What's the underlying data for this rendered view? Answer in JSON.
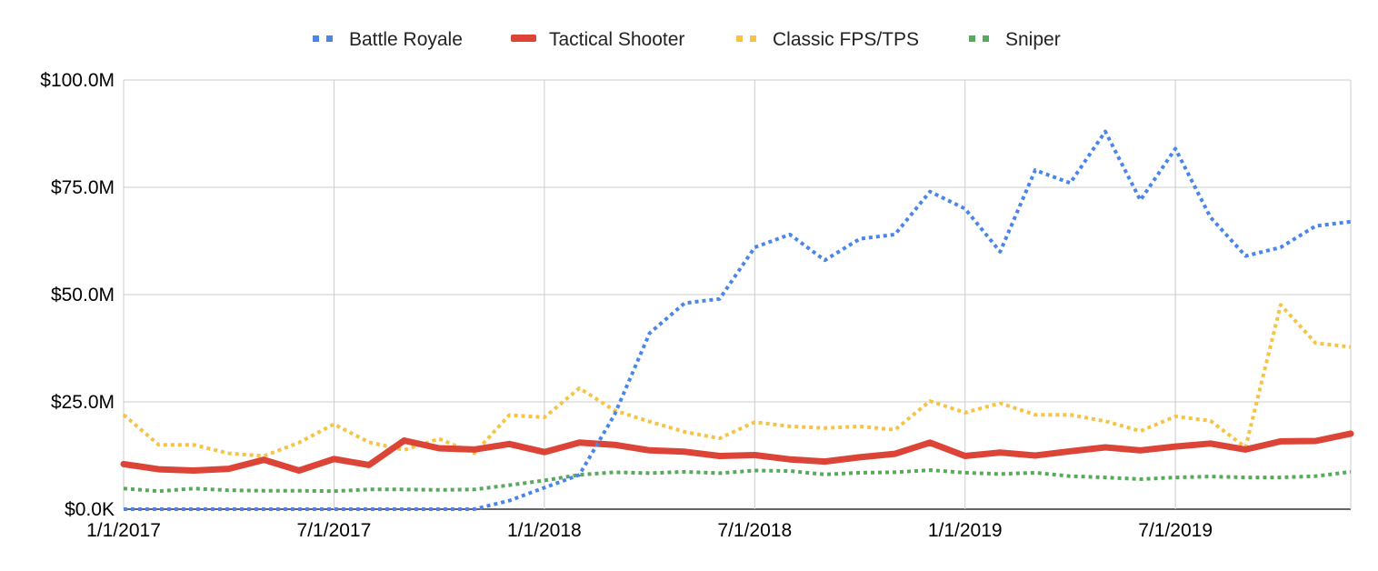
{
  "chart_data": {
    "type": "line",
    "title": "",
    "xlabel": "",
    "ylabel": "",
    "x": [
      "1/1/2017",
      "2/1/2017",
      "3/1/2017",
      "4/1/2017",
      "5/1/2017",
      "6/1/2017",
      "7/1/2017",
      "8/1/2017",
      "9/1/2017",
      "10/1/2017",
      "11/1/2017",
      "12/1/2017",
      "1/1/2018",
      "2/1/2018",
      "3/1/2018",
      "4/1/2018",
      "5/1/2018",
      "6/1/2018",
      "7/1/2018",
      "8/1/2018",
      "9/1/2018",
      "10/1/2018",
      "11/1/2018",
      "12/1/2018",
      "1/1/2019",
      "2/1/2019",
      "3/1/2019",
      "4/1/2019",
      "5/1/2019",
      "6/1/2019",
      "7/1/2019",
      "8/1/2019",
      "9/1/2019",
      "10/1/2019",
      "11/1/2019",
      "12/1/2019"
    ],
    "y_unit": "millions of dollars",
    "ylim": [
      0,
      100
    ],
    "y_ticks": [
      {
        "value": 0,
        "label": "$0.0K"
      },
      {
        "value": 25,
        "label": "$25.0M"
      },
      {
        "value": 50,
        "label": "$50.0M"
      },
      {
        "value": 75,
        "label": "$75.0M"
      },
      {
        "value": 100,
        "label": "$100.0M"
      }
    ],
    "x_ticks": [
      {
        "x": "1/1/2017",
        "label": "1/1/2017"
      },
      {
        "x": "7/1/2017",
        "label": "7/1/2017"
      },
      {
        "x": "1/1/2018",
        "label": "1/1/2018"
      },
      {
        "x": "7/1/2018",
        "label": "7/1/2018"
      },
      {
        "x": "1/1/2019",
        "label": "1/1/2019"
      },
      {
        "x": "7/1/2019",
        "label": "7/1/2019"
      }
    ],
    "grid": true,
    "legend": "top-center",
    "series": [
      {
        "name": "Battle Royale",
        "color": "#4a86e8",
        "style": "dotted",
        "values": [
          0,
          0,
          0,
          0,
          0,
          0,
          0,
          0,
          0,
          0,
          0,
          2,
          5,
          8,
          22,
          41,
          48,
          49,
          61,
          64,
          58,
          63,
          64,
          74,
          70,
          60,
          79,
          76,
          88,
          72,
          84,
          68,
          59,
          61,
          66,
          67
        ]
      },
      {
        "name": "Tactical Shooter",
        "color": "#db4437",
        "style": "solid",
        "values": [
          10.5,
          9.3,
          9,
          9.4,
          11.5,
          9,
          11.7,
          10.3,
          16,
          14.2,
          13.9,
          15.2,
          13.3,
          15.5,
          15,
          13.7,
          13.4,
          12.4,
          12.6,
          11.6,
          11.1,
          12.1,
          12.9,
          15.5,
          12.4,
          13.2,
          12.5,
          13.5,
          14.4,
          13.7,
          14.6,
          15.3,
          13.9,
          15.8,
          15.9,
          17.6
        ]
      },
      {
        "name": "Classic FPS/TPS",
        "color": "#f6c343",
        "style": "dotted",
        "values": [
          22,
          15,
          15,
          13,
          12.4,
          15.5,
          19.8,
          15.6,
          13.8,
          16.4,
          13,
          21.9,
          21.4,
          28.2,
          23,
          20.4,
          18,
          16.5,
          20.3,
          19.3,
          18.9,
          19.3,
          18.5,
          25.2,
          22.5,
          24.7,
          22,
          22,
          20.5,
          18.2,
          21.6,
          20.6,
          14.4,
          47.6,
          38.7,
          37.8
        ]
      },
      {
        "name": "Sniper",
        "color": "#57a95c",
        "style": "dotted",
        "values": [
          4.8,
          4.2,
          4.8,
          4.4,
          4.3,
          4.3,
          4.2,
          4.6,
          4.6,
          4.5,
          4.6,
          5.6,
          6.7,
          8,
          8.6,
          8.4,
          8.7,
          8.4,
          9,
          8.9,
          8.1,
          8.5,
          8.6,
          9.1,
          8.5,
          8.2,
          8.5,
          7.7,
          7.4,
          7,
          7.4,
          7.6,
          7.4,
          7.4,
          7.7,
          8.7
        ]
      }
    ]
  }
}
